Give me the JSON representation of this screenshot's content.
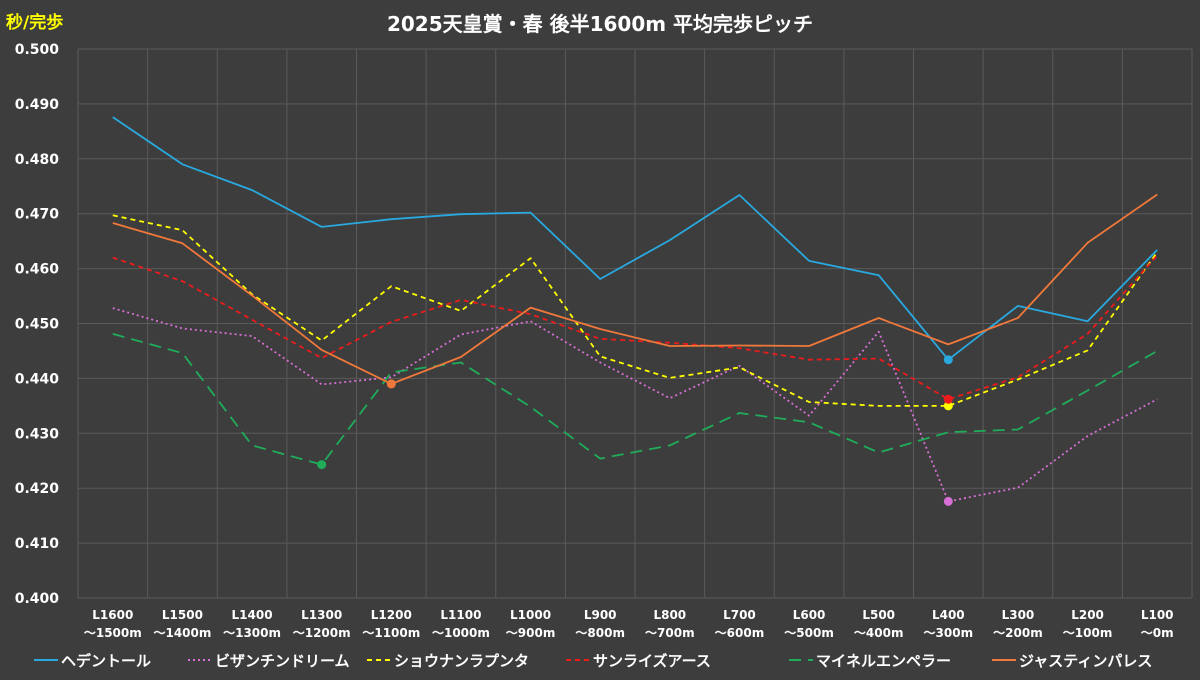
{
  "chart_data": {
    "type": "line",
    "title": "2025天皇賞・春 後半1600m 平均完歩ピッチ",
    "ylabel": "秒/完歩",
    "xlabel": "",
    "ylim": [
      0.4,
      0.5
    ],
    "ytick_values": [
      0.4,
      0.41,
      0.42,
      0.43,
      0.44,
      0.45,
      0.46,
      0.47,
      0.48,
      0.49,
      0.5
    ],
    "ytick_labels": [
      "0.400",
      "0.410",
      "0.420",
      "0.430",
      "0.440",
      "0.450",
      "0.460",
      "0.470",
      "0.480",
      "0.490",
      "0.500"
    ],
    "categories": [
      [
        "L1600",
        "～1500m"
      ],
      [
        "L1500",
        "～1400m"
      ],
      [
        "L1400",
        "～1300m"
      ],
      [
        "L1300",
        "～1200m"
      ],
      [
        "L1200",
        "～1100m"
      ],
      [
        "L1100",
        "～1000m"
      ],
      [
        "L1000",
        "～900m"
      ],
      [
        "L900",
        "～800m"
      ],
      [
        "L800",
        "～700m"
      ],
      [
        "L700",
        "～600m"
      ],
      [
        "L600",
        "～500m"
      ],
      [
        "L500",
        "～400m"
      ],
      [
        "L400",
        "～300m"
      ],
      [
        "L300",
        "～200m"
      ],
      [
        "L200",
        "～100m"
      ],
      [
        "L100",
        "～0m"
      ]
    ],
    "grid": true,
    "legend": "bottom",
    "series": [
      {
        "name": "ヘデントール",
        "color": "#29a9e0",
        "style": "solid",
        "values": [
          0.4876,
          0.479,
          0.4743,
          0.4676,
          0.469,
          0.4699,
          0.4702,
          0.4581,
          0.4652,
          0.4734,
          0.4614,
          0.4588,
          0.4434,
          0.4532,
          0.4504,
          0.4634
        ],
        "marker_index": 12
      },
      {
        "name": "ビザンチンドリーム",
        "color": "#d96fd4",
        "style": "dotted",
        "values": [
          0.4528,
          0.4491,
          0.4477,
          0.4389,
          0.4402,
          0.448,
          0.4504,
          0.4429,
          0.4364,
          0.4423,
          0.4332,
          0.4485,
          0.4176,
          0.4201,
          0.4295,
          0.4362
        ],
        "marker_index": 12
      },
      {
        "name": "ショウナンラプンタ",
        "color": "#ffff00",
        "style": "dashed",
        "values": [
          0.4697,
          0.467,
          0.4553,
          0.4469,
          0.4568,
          0.4523,
          0.4619,
          0.444,
          0.4401,
          0.442,
          0.4357,
          0.435,
          0.435,
          0.4398,
          0.4451,
          0.463
        ],
        "marker_index": 12
      },
      {
        "name": "サンライズアース",
        "color": "#ee1b1b",
        "style": "dashed",
        "values": [
          0.462,
          0.4577,
          0.4507,
          0.4437,
          0.4503,
          0.4543,
          0.4517,
          0.4472,
          0.4465,
          0.4455,
          0.4434,
          0.4436,
          0.4362,
          0.4402,
          0.4481,
          0.4624
        ],
        "marker_index": 12
      },
      {
        "name": "マイネルエンペラー",
        "color": "#1fad5a",
        "style": "longdash",
        "values": [
          0.4481,
          0.4446,
          0.4278,
          0.4243,
          0.4411,
          0.4429,
          0.4348,
          0.4254,
          0.4278,
          0.4337,
          0.432,
          0.4265,
          0.4302,
          0.4307,
          0.4378,
          0.445
        ],
        "marker_index": 3
      },
      {
        "name": "ジャスティンパレス",
        "color": "#f0783a",
        "style": "solid",
        "values": [
          0.4683,
          0.4646,
          0.4551,
          0.4452,
          0.439,
          0.4439,
          0.4529,
          0.449,
          0.4459,
          0.446,
          0.4459,
          0.451,
          0.4462,
          0.451,
          0.4647,
          0.4735
        ],
        "marker_index": 4
      }
    ]
  }
}
